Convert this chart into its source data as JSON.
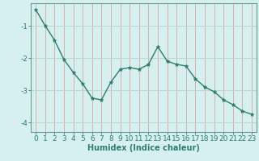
{
  "x": [
    0,
    1,
    2,
    3,
    4,
    5,
    6,
    7,
    8,
    9,
    10,
    11,
    12,
    13,
    14,
    15,
    16,
    17,
    18,
    19,
    20,
    21,
    22,
    23
  ],
  "y": [
    -0.5,
    -1.0,
    -1.45,
    -2.05,
    -2.45,
    -2.8,
    -3.25,
    -3.3,
    -2.75,
    -2.35,
    -2.3,
    -2.35,
    -2.2,
    -1.65,
    -2.1,
    -2.2,
    -2.25,
    -2.65,
    -2.9,
    -3.05,
    -3.3,
    -3.45,
    -3.65,
    -3.75
  ],
  "xlabel": "Humidex (Indice chaleur)",
  "ylim": [
    -4.3,
    -0.3
  ],
  "xlim": [
    -0.5,
    23.5
  ],
  "yticks": [
    -4,
    -3,
    -2,
    -1
  ],
  "xticks": [
    0,
    1,
    2,
    3,
    4,
    5,
    6,
    7,
    8,
    9,
    10,
    11,
    12,
    13,
    14,
    15,
    16,
    17,
    18,
    19,
    20,
    21,
    22,
    23
  ],
  "line_color": "#2e7d6e",
  "marker": "*",
  "bg_color": "#d6f0f0",
  "vgrid_color": "#d8b0b0",
  "hgrid_color": "#b8d8d0",
  "font_color": "#2e7d6e",
  "spine_color": "#6a9a94",
  "markersize": 3.5,
  "linewidth": 1.0,
  "xlabel_fontsize": 7,
  "tick_fontsize": 6.5
}
